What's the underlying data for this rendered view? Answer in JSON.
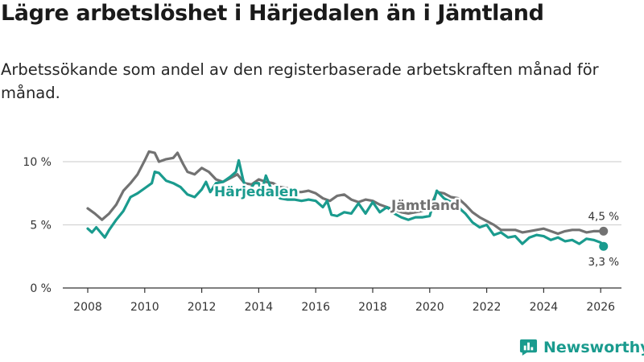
{
  "header": {
    "title": "Lägre arbetslöshet i Härjedalen än i Jämtland",
    "subtitle": "Arbetssökande som andel av den registerbaserade arbetskraften månad för månad."
  },
  "brand": {
    "name": "Newsworthy"
  },
  "colors": {
    "harjedalen": "#1a9b8e",
    "jamtland": "#727272",
    "grid": "#d3d3d3",
    "axis": "#333333"
  },
  "chart_data": {
    "type": "line",
    "title": "Lägre arbetslöshet i Härjedalen än i Jämtland",
    "subtitle": "Arbetssökande som andel av den registerbaserade arbetskraften månad för månad.",
    "xlabel": "",
    "ylabel": "",
    "xlim": [
      2007.5,
      2026.5
    ],
    "ylim": [
      0,
      11
    ],
    "grid": "horizontal",
    "x_ticks": [
      2008,
      2010,
      2012,
      2014,
      2016,
      2018,
      2020,
      2022,
      2024,
      2026
    ],
    "x_tick_labels": [
      "2008",
      "2010",
      "2012",
      "2014",
      "2016",
      "2018",
      "2020",
      "2022",
      "2024",
      "2026"
    ],
    "y_ticks": [
      0,
      5,
      10
    ],
    "y_tick_labels": [
      "0 %",
      "5 %",
      "10 %"
    ],
    "series": [
      {
        "name": "Jämtland",
        "color": "#727272",
        "end_label": "4,5 %",
        "points": [
          [
            2008.0,
            6.3
          ],
          [
            2008.25,
            5.9
          ],
          [
            2008.5,
            5.4
          ],
          [
            2008.75,
            5.9
          ],
          [
            2009.0,
            6.6
          ],
          [
            2009.25,
            7.7
          ],
          [
            2009.5,
            8.3
          ],
          [
            2009.75,
            9.0
          ],
          [
            2010.0,
            10.1
          ],
          [
            2010.15,
            10.8
          ],
          [
            2010.35,
            10.7
          ],
          [
            2010.5,
            10.0
          ],
          [
            2010.75,
            10.2
          ],
          [
            2011.0,
            10.3
          ],
          [
            2011.15,
            10.7
          ],
          [
            2011.35,
            9.8
          ],
          [
            2011.5,
            9.2
          ],
          [
            2011.75,
            9.0
          ],
          [
            2012.0,
            9.5
          ],
          [
            2012.25,
            9.2
          ],
          [
            2012.5,
            8.6
          ],
          [
            2012.75,
            8.4
          ],
          [
            2013.0,
            8.7
          ],
          [
            2013.25,
            9.0
          ],
          [
            2013.5,
            8.3
          ],
          [
            2013.75,
            8.2
          ],
          [
            2014.0,
            8.6
          ],
          [
            2014.25,
            8.4
          ],
          [
            2014.5,
            8.3
          ],
          [
            2014.75,
            8.0
          ],
          [
            2015.0,
            7.9
          ],
          [
            2015.25,
            7.6
          ],
          [
            2015.5,
            7.6
          ],
          [
            2015.75,
            7.7
          ],
          [
            2016.0,
            7.5
          ],
          [
            2016.25,
            7.1
          ],
          [
            2016.5,
            6.9
          ],
          [
            2016.75,
            7.3
          ],
          [
            2017.0,
            7.4
          ],
          [
            2017.25,
            7.0
          ],
          [
            2017.5,
            6.8
          ],
          [
            2017.75,
            7.0
          ],
          [
            2018.0,
            6.9
          ],
          [
            2018.25,
            6.6
          ],
          [
            2018.5,
            6.4
          ],
          [
            2018.75,
            6.2
          ],
          [
            2019.0,
            6.0
          ],
          [
            2019.25,
            5.9
          ],
          [
            2019.5,
            6.0
          ],
          [
            2019.75,
            6.1
          ],
          [
            2020.0,
            6.3
          ],
          [
            2020.25,
            7.6
          ],
          [
            2020.5,
            7.5
          ],
          [
            2020.75,
            7.2
          ],
          [
            2021.0,
            7.1
          ],
          [
            2021.25,
            6.6
          ],
          [
            2021.5,
            6.0
          ],
          [
            2021.75,
            5.6
          ],
          [
            2022.0,
            5.3
          ],
          [
            2022.25,
            5.0
          ],
          [
            2022.5,
            4.6
          ],
          [
            2022.75,
            4.6
          ],
          [
            2023.0,
            4.6
          ],
          [
            2023.25,
            4.4
          ],
          [
            2023.5,
            4.5
          ],
          [
            2023.75,
            4.6
          ],
          [
            2024.0,
            4.7
          ],
          [
            2024.25,
            4.5
          ],
          [
            2024.5,
            4.3
          ],
          [
            2024.75,
            4.5
          ],
          [
            2025.0,
            4.6
          ],
          [
            2025.25,
            4.6
          ],
          [
            2025.5,
            4.4
          ],
          [
            2025.75,
            4.5
          ],
          [
            2026.0,
            4.5
          ],
          [
            2026.1,
            4.5
          ]
        ]
      },
      {
        "name": "Härjedalen",
        "color": "#1a9b8e",
        "end_label": "3,3 %",
        "points": [
          [
            2008.0,
            4.7
          ],
          [
            2008.15,
            4.4
          ],
          [
            2008.3,
            4.8
          ],
          [
            2008.45,
            4.4
          ],
          [
            2008.6,
            4.0
          ],
          [
            2008.75,
            4.6
          ],
          [
            2009.0,
            5.4
          ],
          [
            2009.25,
            6.1
          ],
          [
            2009.5,
            7.2
          ],
          [
            2009.75,
            7.5
          ],
          [
            2010.0,
            7.9
          ],
          [
            2010.25,
            8.3
          ],
          [
            2010.35,
            9.2
          ],
          [
            2010.5,
            9.1
          ],
          [
            2010.75,
            8.5
          ],
          [
            2011.0,
            8.3
          ],
          [
            2011.25,
            8.0
          ],
          [
            2011.5,
            7.4
          ],
          [
            2011.75,
            7.2
          ],
          [
            2012.0,
            7.8
          ],
          [
            2012.15,
            8.4
          ],
          [
            2012.3,
            7.6
          ],
          [
            2012.5,
            8.3
          ],
          [
            2012.75,
            8.4
          ],
          [
            2013.0,
            8.8
          ],
          [
            2013.2,
            9.2
          ],
          [
            2013.3,
            10.1
          ],
          [
            2013.45,
            8.6
          ],
          [
            2013.6,
            7.5
          ],
          [
            2013.85,
            8.3
          ],
          [
            2014.0,
            8.3
          ],
          [
            2014.1,
            7.6
          ],
          [
            2014.25,
            8.9
          ],
          [
            2014.5,
            7.5
          ],
          [
            2014.75,
            7.1
          ],
          [
            2015.0,
            7.0
          ],
          [
            2015.25,
            7.0
          ],
          [
            2015.5,
            6.9
          ],
          [
            2015.75,
            7.0
          ],
          [
            2016.0,
            6.9
          ],
          [
            2016.25,
            6.4
          ],
          [
            2016.4,
            6.9
          ],
          [
            2016.55,
            5.8
          ],
          [
            2016.75,
            5.7
          ],
          [
            2017.0,
            6.0
          ],
          [
            2017.25,
            5.9
          ],
          [
            2017.5,
            6.7
          ],
          [
            2017.75,
            5.9
          ],
          [
            2018.0,
            6.8
          ],
          [
            2018.25,
            6.0
          ],
          [
            2018.5,
            6.4
          ],
          [
            2018.75,
            5.9
          ],
          [
            2019.0,
            5.6
          ],
          [
            2019.25,
            5.4
          ],
          [
            2019.5,
            5.6
          ],
          [
            2019.75,
            5.6
          ],
          [
            2020.0,
            5.7
          ],
          [
            2020.25,
            7.7
          ],
          [
            2020.5,
            7.1
          ],
          [
            2020.75,
            6.8
          ],
          [
            2021.0,
            6.4
          ],
          [
            2021.25,
            5.9
          ],
          [
            2021.5,
            5.2
          ],
          [
            2021.75,
            4.8
          ],
          [
            2022.0,
            5.0
          ],
          [
            2022.25,
            4.2
          ],
          [
            2022.5,
            4.4
          ],
          [
            2022.75,
            4.0
          ],
          [
            2023.0,
            4.1
          ],
          [
            2023.25,
            3.5
          ],
          [
            2023.5,
            4.0
          ],
          [
            2023.75,
            4.2
          ],
          [
            2024.0,
            4.1
          ],
          [
            2024.25,
            3.8
          ],
          [
            2024.5,
            4.0
          ],
          [
            2024.75,
            3.7
          ],
          [
            2025.0,
            3.8
          ],
          [
            2025.25,
            3.5
          ],
          [
            2025.5,
            3.9
          ],
          [
            2025.75,
            3.8
          ],
          [
            2026.0,
            3.6
          ],
          [
            2026.1,
            3.3
          ]
        ]
      }
    ],
    "annotations": [
      "Härjedalen",
      "Jämtland"
    ]
  }
}
